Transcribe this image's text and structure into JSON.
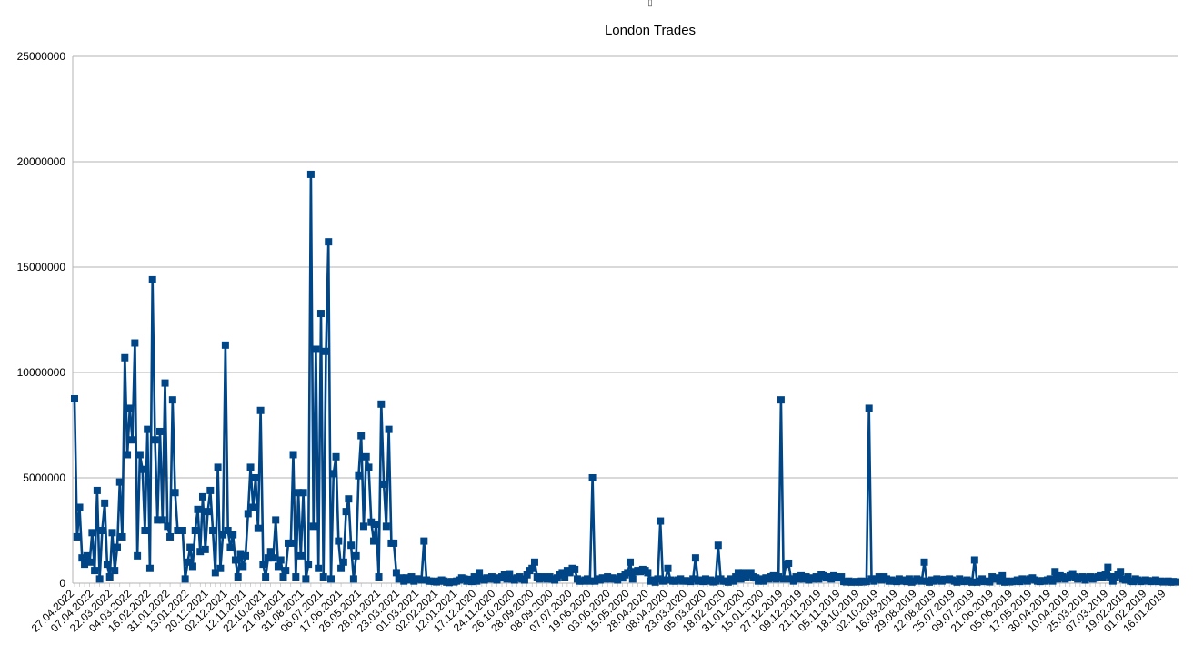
{
  "top_marker": "▯",
  "chart_data": {
    "type": "line",
    "title": "London Trades",
    "xlabel": "",
    "ylabel": "",
    "ylim": [
      0,
      25000000
    ],
    "yticks": [
      0,
      5000000,
      10000000,
      15000000,
      20000000,
      25000000
    ],
    "ytick_labels": [
      "0",
      "5000000",
      "10000000",
      "15000000",
      "20000000",
      "25000000"
    ],
    "grid": true,
    "legend": "none",
    "marker": "square",
    "color": "#004586",
    "x_order": "descending dates, left (newest) to right (oldest)",
    "xtick_labels": [
      "27.04.2022",
      "07.04.2022",
      "22.03.2022",
      "04.03.2022",
      "16.02.2022",
      "31.01.2022",
      "13.01.2022",
      "20.12.2021",
      "02.12.2021",
      "12.11.2021",
      "22.10.2021",
      "21.09.2021",
      "31.08.2021",
      "06.07.2021",
      "17.06.2021",
      "26.05.2021",
      "28.04.2021",
      "23.03.2021",
      "01.03.2021",
      "02.02.2021",
      "12.01.2021",
      "17.12.2020",
      "24.11.2020",
      "26.10.2020",
      "28.09.2020",
      "08.09.2020",
      "07.07.2020",
      "19.06.2020",
      "03.06.2020",
      "15.05.2020",
      "28.04.2020",
      "08.04.2020",
      "23.03.2020",
      "05.03.2020",
      "18.02.2020",
      "31.01.2020",
      "15.01.2020",
      "27.12.2019",
      "09.12.2019",
      "21.11.2019",
      "05.11.2019",
      "18.10.2019",
      "02.10.2019",
      "16.09.2019",
      "29.08.2019",
      "12.08.2019",
      "25.07.2019",
      "09.07.2019",
      "21.06.2019",
      "05.06.2019",
      "17.05.2019",
      "30.04.2019",
      "10.04.2019",
      "25.03.2019",
      "07.03.2019",
      "19.02.2019",
      "01.02.2019",
      "16.01.2019"
    ],
    "values": [
      8750000,
      2200000,
      3600000,
      1200000,
      900000,
      1300000,
      1000000,
      2400000,
      600000,
      4400000,
      200000,
      2500000,
      3800000,
      900000,
      300000,
      2400000,
      600000,
      1700000,
      4800000,
      2200000,
      10700000,
      6100000,
      8300000,
      6800000,
      11400000,
      1300000,
      6100000,
      5400000,
      2500000,
      7300000,
      700000,
      14400000,
      6800000,
      3000000,
      7200000,
      3000000,
      9500000,
      2700000,
      2200000,
      8700000,
      4300000,
      2500000,
      2500000,
      2500000,
      200000,
      1000000,
      1700000,
      800000,
      2500000,
      3500000,
      1500000,
      4100000,
      1600000,
      3400000,
      4400000,
      2500000,
      500000,
      5500000,
      700000,
      2300000,
      11300000,
      2500000,
      1700000,
      2300000,
      1100000,
      300000,
      1400000,
      800000,
      1300000,
      3300000,
      5500000,
      3600000,
      5000000,
      2600000,
      8200000,
      900000,
      300000,
      1200000,
      1500000,
      1200000,
      3000000,
      800000,
      1100000,
      300000,
      600000,
      1900000,
      1900000,
      6100000,
      300000,
      4300000,
      1300000,
      4300000,
      200000,
      900000,
      19400000,
      2700000,
      11100000,
      700000,
      12800000,
      300000,
      11000000,
      16200000,
      200000,
      5200000,
      6000000,
      2000000,
      700000,
      1000000,
      3400000,
      4000000,
      1800000,
      200000,
      1300000,
      5100000,
      7000000,
      2700000,
      6000000,
      5500000,
      2900000,
      2000000,
      2800000,
      300000,
      8500000,
      4700000,
      2700000,
      7300000,
      1900000,
      1900000,
      500000,
      200000,
      250000,
      100000,
      250000,
      150000,
      300000,
      100000,
      200000,
      200000,
      150000,
      2000000,
      150000,
      100000,
      100000,
      80000,
      60000,
      100000,
      150000,
      100000,
      50000,
      30000,
      80000,
      60000,
      100000,
      150000,
      250000,
      200000,
      100000,
      180000,
      80000,
      300000,
      100000,
      500000,
      200000,
      150000,
      250000,
      200000,
      300000,
      200000,
      150000,
      250000,
      300000,
      400000,
      200000,
      450000,
      200000,
      150000,
      250000,
      300000,
      200000,
      150000,
      400000,
      600000,
      700000,
      1000000,
      300000,
      200000,
      300000,
      250000,
      200000,
      300000,
      200000,
      150000,
      250000,
      400000,
      500000,
      300000,
      600000,
      500000,
      700000,
      650000,
      200000,
      100000,
      100000,
      150000,
      200000,
      100000,
      5000000,
      100000,
      200000,
      150000,
      250000,
      200000,
      300000,
      200000,
      250000,
      200000,
      150000,
      300000,
      250000,
      400000,
      500000,
      1000000,
      200000,
      550000,
      600000,
      550000,
      650000,
      600000,
      500000,
      100000,
      150000,
      50000,
      200000,
      2950000,
      100000,
      150000,
      700000,
      150000,
      100000,
      100000,
      150000,
      200000,
      100000,
      120000,
      100000,
      80000,
      200000,
      1200000,
      100000,
      150000,
      80000,
      200000,
      100000,
      150000,
      60000,
      100000,
      1800000,
      200000,
      100000,
      100000,
      50000,
      200000,
      100000,
      300000,
      500000,
      200000,
      500000,
      300000,
      400000,
      500000,
      300000,
      250000,
      100000,
      200000,
      100000,
      250000,
      200000,
      300000,
      350000,
      200000,
      300000,
      8700000,
      200000,
      900000,
      950000,
      200000,
      100000,
      300000,
      200000,
      350000,
      200000,
      300000,
      150000,
      250000,
      200000,
      300000,
      200000,
      400000,
      350000,
      250000,
      300000,
      200000,
      350000,
      300000,
      250000,
      300000,
      80000,
      60000,
      100000,
      50000,
      60000,
      80000,
      50000,
      100000,
      60000,
      80000,
      8300000,
      200000,
      100000,
      200000,
      300000,
      150000,
      300000,
      200000,
      100000,
      150000,
      100000,
      80000,
      200000,
      100000,
      150000,
      80000,
      200000,
      50000,
      100000,
      200000,
      150000,
      100000,
      1000000,
      100000,
      50000,
      150000,
      100000,
      200000,
      150000,
      100000,
      180000,
      150000,
      200000,
      150000,
      100000,
      50000,
      200000,
      100000,
      80000,
      150000,
      100000,
      50000,
      1100000,
      50000,
      100000,
      200000,
      80000,
      100000,
      60000,
      300000,
      200000,
      250000,
      100000,
      350000,
      50000,
      100000,
      60000,
      80000,
      100000,
      150000,
      80000,
      200000,
      150000,
      100000,
      200000,
      250000,
      150000,
      100000,
      80000,
      120000,
      100000,
      150000,
      200000,
      100000,
      550000,
      200000,
      350000,
      300000,
      200000,
      250000,
      350000,
      450000,
      300000,
      200000,
      250000,
      300000,
      150000,
      250000,
      300000,
      200000,
      250000,
      300000,
      350000,
      300000,
      400000,
      750000,
      300000,
      100000,
      300000,
      400000,
      550000,
      200000,
      150000,
      300000,
      100000,
      80000,
      200000,
      150000,
      80000,
      100000,
      150000,
      120000,
      80000,
      100000,
      150000,
      80000,
      100000,
      60000,
      80000,
      100000,
      50000,
      80000,
      60000
    ]
  }
}
